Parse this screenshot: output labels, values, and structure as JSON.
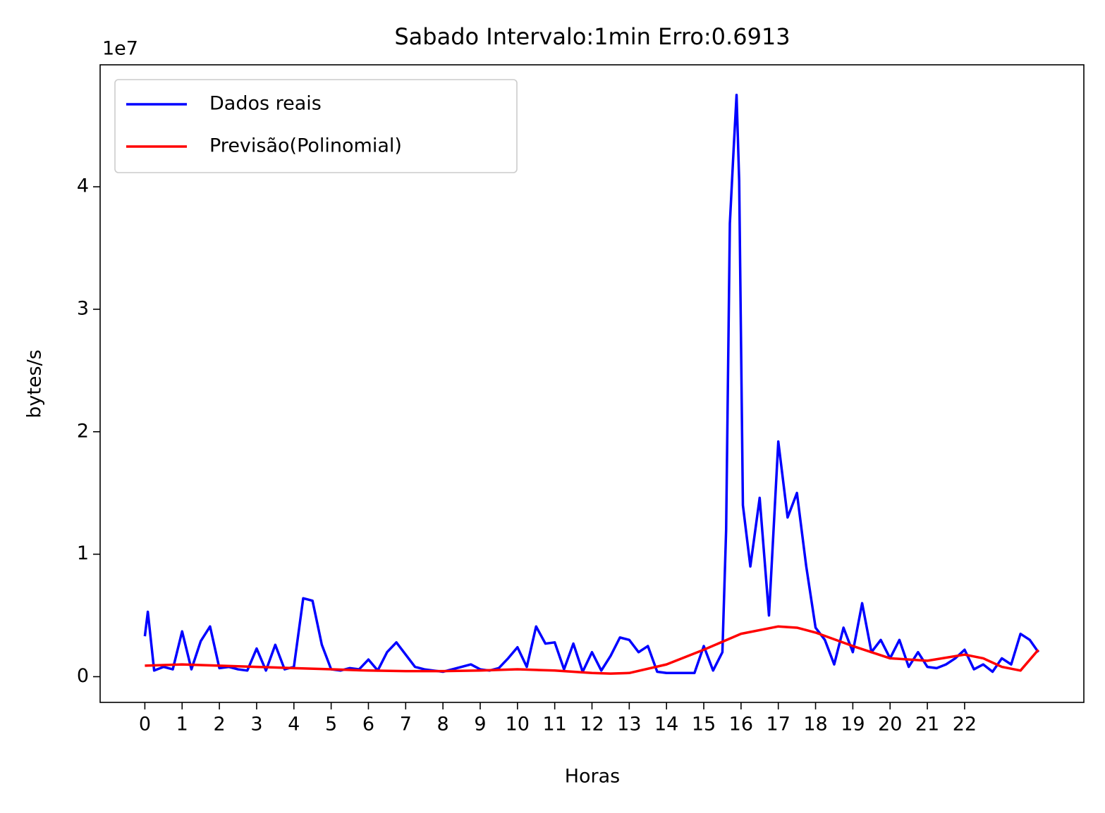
{
  "chart_data": {
    "type": "line",
    "title": "Sabado Intervalo:1min Erro:0.6913",
    "x_label": "Horas",
    "y_label": "bytes/s",
    "y_offset_label": "1e7",
    "xlim": [
      -1.2,
      25.2
    ],
    "ylim": [
      -0.21,
      4.996
    ],
    "xticks": [
      0,
      1,
      2,
      3,
      4,
      5,
      6,
      7,
      8,
      9,
      10,
      11,
      12,
      13,
      14,
      15,
      16,
      17,
      18,
      19,
      20,
      21,
      22
    ],
    "yticks": [
      0,
      1,
      2,
      3,
      4
    ],
    "legend": "upper left",
    "series": [
      {
        "name": "Dados reais",
        "color": "#0000ff",
        "x": [
          0,
          0.08,
          0.25,
          0.5,
          0.75,
          1,
          1.25,
          1.5,
          1.75,
          2,
          2.25,
          2.5,
          2.75,
          3,
          3.25,
          3.5,
          3.75,
          4,
          4.25,
          4.5,
          4.75,
          5,
          5.25,
          5.5,
          5.75,
          6,
          6.25,
          6.5,
          6.75,
          7,
          7.25,
          7.5,
          7.75,
          8,
          8.25,
          8.5,
          8.75,
          9,
          9.25,
          9.5,
          9.75,
          10,
          10.25,
          10.5,
          10.75,
          11,
          11.25,
          11.5,
          11.75,
          12,
          12.25,
          12.5,
          12.75,
          13,
          13.25,
          13.5,
          13.75,
          14,
          14.25,
          14.5,
          14.75,
          15,
          15.25,
          15.5,
          15.6,
          15.7,
          15.8,
          15.88,
          15.95,
          16.05,
          16.25,
          16.5,
          16.75,
          17,
          17.25,
          17.5,
          17.75,
          18,
          18.25,
          18.5,
          18.75,
          19,
          19.25,
          19.5,
          19.75,
          20,
          20.25,
          20.5,
          20.75,
          21,
          21.25,
          21.5,
          21.75,
          22,
          22.25,
          22.5,
          22.75,
          23,
          23.25,
          23.5,
          23.75,
          23.98
        ],
        "values": [
          0.33,
          0.53,
          0.05,
          0.08,
          0.06,
          0.37,
          0.06,
          0.29,
          0.41,
          0.07,
          0.08,
          0.06,
          0.05,
          0.23,
          0.05,
          0.26,
          0.06,
          0.08,
          0.64,
          0.62,
          0.26,
          0.06,
          0.05,
          0.07,
          0.06,
          0.14,
          0.05,
          0.2,
          0.28,
          0.18,
          0.08,
          0.06,
          0.05,
          0.04,
          0.06,
          0.08,
          0.1,
          0.06,
          0.05,
          0.07,
          0.15,
          0.24,
          0.08,
          0.41,
          0.27,
          0.28,
          0.06,
          0.27,
          0.04,
          0.2,
          0.05,
          0.17,
          0.32,
          0.3,
          0.2,
          0.25,
          0.04,
          0.03,
          0.03,
          0.03,
          0.03,
          0.25,
          0.05,
          0.2,
          1.2,
          3.7,
          4.3,
          4.75,
          4.05,
          1.4,
          0.9,
          1.46,
          0.5,
          1.92,
          1.3,
          1.5,
          0.9,
          0.4,
          0.3,
          0.1,
          0.4,
          0.2,
          0.6,
          0.2,
          0.3,
          0.15,
          0.3,
          0.08,
          0.2,
          0.08,
          0.07,
          0.1,
          0.15,
          0.22,
          0.06,
          0.1,
          0.04,
          0.15,
          0.1,
          0.35,
          0.3,
          0.2
        ]
      },
      {
        "name": "Previsão(Polinomial)",
        "color": "#ff0000",
        "x": [
          0,
          1,
          2,
          3,
          4,
          5,
          6,
          7,
          8,
          9,
          10,
          11,
          12,
          12.5,
          13,
          14,
          15,
          16,
          17,
          17.5,
          18,
          19,
          20,
          21,
          22,
          22.5,
          23,
          23.5,
          23.98
        ],
        "values": [
          0.09,
          0.1,
          0.09,
          0.08,
          0.07,
          0.06,
          0.05,
          0.045,
          0.045,
          0.05,
          0.06,
          0.05,
          0.03,
          0.025,
          0.03,
          0.1,
          0.22,
          0.35,
          0.41,
          0.4,
          0.36,
          0.25,
          0.15,
          0.13,
          0.18,
          0.15,
          0.08,
          0.05,
          0.22
        ]
      }
    ]
  }
}
